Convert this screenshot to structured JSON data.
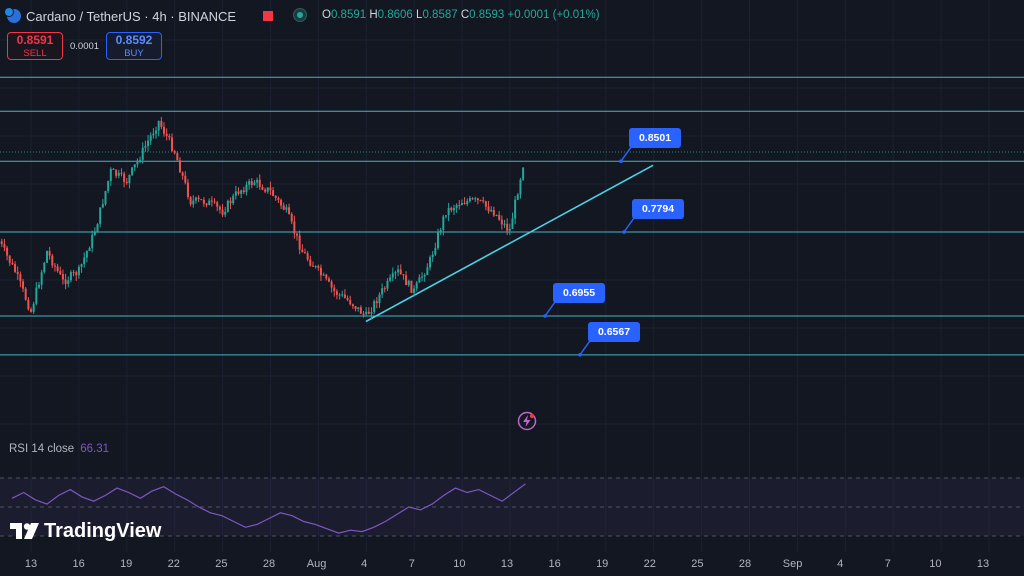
{
  "header": {
    "title": "Cardano / TetherUS · 4h · BINANCE",
    "ohlc": {
      "o_label": "O",
      "o": "0.8591",
      "h_label": "H",
      "h": "0.8606",
      "l_label": "L",
      "l": "0.8587",
      "c_label": "C",
      "c": "0.8593",
      "change": "+0.0001 (+0.01%)"
    }
  },
  "trade": {
    "sell_price": "0.8591",
    "sell_label": "SELL",
    "spread": "0.0001",
    "buy_price": "0.8592",
    "buy_label": "BUY"
  },
  "rsi": {
    "label": "RSI 14 close",
    "value": "66.31"
  },
  "brand": "TradingView",
  "colors": {
    "background": "#131722",
    "up": "#26a69a",
    "down": "#ef5350",
    "level_line": "#4dd0e1",
    "rsi_line": "#7e57c2",
    "tag": "#2962ff"
  },
  "chart_data": {
    "type": "candlestick",
    "symbol": "ADA/USDT",
    "interval": "4h",
    "x_ticks": [
      "13",
      "16",
      "19",
      "22",
      "25",
      "28",
      "Aug",
      "4",
      "7",
      "10",
      "13",
      "16",
      "19",
      "22",
      "25",
      "28",
      "Sep",
      "4",
      "7",
      "10",
      "13"
    ],
    "levels": [
      {
        "price": 0.8501,
        "label": "0.8501"
      },
      {
        "price": 0.7794,
        "label": "0.7794"
      },
      {
        "price": 0.6955,
        "label": "0.6955"
      },
      {
        "price": 0.6567,
        "label": "0.6567"
      }
    ],
    "upper_levels": [
      0.934,
      0.9
    ],
    "trendline": {
      "from": {
        "date": "Aug 3",
        "price": 0.69
      },
      "to": {
        "date": "Aug 21",
        "price": 0.846
      }
    },
    "last_price": 0.8593,
    "price_path": [
      {
        "date": "Jul 11",
        "price": 0.77
      },
      {
        "date": "Jul 12",
        "price": 0.74
      },
      {
        "date": "Jul 13",
        "price": 0.7
      },
      {
        "date": "Jul 14",
        "price": 0.76
      },
      {
        "date": "Jul 15",
        "price": 0.73
      },
      {
        "date": "Jul 16",
        "price": 0.74
      },
      {
        "date": "Jul 17",
        "price": 0.78
      },
      {
        "date": "Jul 18",
        "price": 0.84
      },
      {
        "date": "Jul 19",
        "price": 0.83
      },
      {
        "date": "Jul 20",
        "price": 0.86
      },
      {
        "date": "Jul 21",
        "price": 0.89
      },
      {
        "date": "Jul 22",
        "price": 0.86
      },
      {
        "date": "Jul 23",
        "price": 0.81
      },
      {
        "date": "Jul 24",
        "price": 0.81
      },
      {
        "date": "Jul 25",
        "price": 0.8
      },
      {
        "date": "Jul 26",
        "price": 0.82
      },
      {
        "date": "Jul 27",
        "price": 0.83
      },
      {
        "date": "Jul 28",
        "price": 0.82
      },
      {
        "date": "Jul 29",
        "price": 0.8
      },
      {
        "date": "Jul 30",
        "price": 0.76
      },
      {
        "date": "Jul 31",
        "price": 0.74
      },
      {
        "date": "Aug 1",
        "price": 0.72
      },
      {
        "date": "Aug 2",
        "price": 0.71
      },
      {
        "date": "Aug 3",
        "price": 0.695
      },
      {
        "date": "Aug 4",
        "price": 0.72
      },
      {
        "date": "Aug 5",
        "price": 0.74
      },
      {
        "date": "Aug 6",
        "price": 0.72
      },
      {
        "date": "Aug 7",
        "price": 0.75
      },
      {
        "date": "Aug 8",
        "price": 0.8
      },
      {
        "date": "Aug 9",
        "price": 0.81
      },
      {
        "date": "Aug 10",
        "price": 0.81
      },
      {
        "date": "Aug 11",
        "price": 0.8
      },
      {
        "date": "Aug 12",
        "price": 0.78
      },
      {
        "date": "Aug 13",
        "price": 0.859
      }
    ],
    "rsi_series": [
      56,
      60,
      55,
      52,
      58,
      62,
      57,
      54,
      58,
      63,
      60,
      56,
      61,
      64,
      59,
      55,
      50,
      46,
      44,
      40,
      36,
      38,
      42,
      46,
      44,
      40,
      38,
      35,
      32,
      34,
      33,
      36,
      40,
      45,
      50,
      48,
      52,
      58,
      63,
      60,
      62,
      58,
      54,
      60,
      66
    ],
    "rsi_levels": [
      70,
      50,
      30
    ]
  }
}
